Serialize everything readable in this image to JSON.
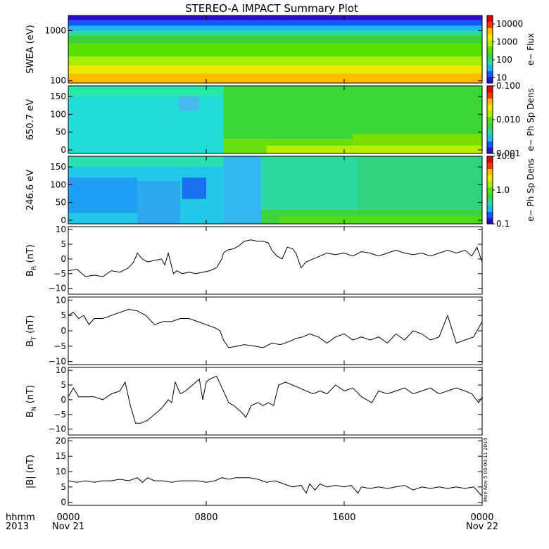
{
  "title": "STEREO-A IMPACT Summary Plot",
  "stamp": "Mon Nov  5 05:00:11 2014",
  "colors": {
    "frame": "#000000",
    "trace": "#000000",
    "background": "#ffffff"
  },
  "x_axis": {
    "caption_row1": "hhmm",
    "caption_row2": "2013",
    "range_hours": [
      0,
      24
    ],
    "ticks": [
      {
        "hour": 0,
        "label": "0000",
        "sublabel": "Nov 21"
      },
      {
        "hour": 8,
        "label": "0800",
        "sublabel": ""
      },
      {
        "hour": 16,
        "label": "1600",
        "sublabel": ""
      },
      {
        "hour": 24,
        "label": "0000",
        "sublabel": "Nov 22"
      }
    ]
  },
  "chart_data": [
    {
      "type": "heatmap",
      "ylabel": "SWEA (eV)",
      "yscale": "log",
      "ylim": [
        90,
        2000
      ],
      "yticks": [
        {
          "v": 100,
          "label": "100"
        },
        {
          "v": 1000,
          "label": "1000"
        }
      ],
      "colorbar_label": "e− Flux",
      "colorbar_scale": "log",
      "colorbar_range": [
        5,
        30000
      ],
      "colorbar_ticks": [
        {
          "v": 10,
          "label": "10"
        },
        {
          "v": 100,
          "label": "100"
        },
        {
          "v": 1000,
          "label": "1000"
        },
        {
          "v": 10000,
          "label": "10000"
        }
      ],
      "color_bands": [
        {
          "y_from": 1600,
          "y_to": 2000,
          "color": "#2c10c8"
        },
        {
          "y_from": 1250,
          "y_to": 1600,
          "color": "#1058ff"
        },
        {
          "y_from": 1000,
          "y_to": 1250,
          "color": "#19b8f0"
        },
        {
          "y_from": 800,
          "y_to": 1000,
          "color": "#2cd8a0"
        },
        {
          "y_from": 550,
          "y_to": 800,
          "color": "#3ed23a"
        },
        {
          "y_from": 300,
          "y_to": 550,
          "color": "#58e000"
        },
        {
          "y_from": 200,
          "y_to": 300,
          "color": "#a8ee00"
        },
        {
          "y_from": 140,
          "y_to": 200,
          "color": "#eee800"
        },
        {
          "y_from": 90,
          "y_to": 140,
          "color": "#ffbb00"
        }
      ]
    },
    {
      "type": "heatmap",
      "ylabel": "650.7 eV",
      "yscale": "linear",
      "ylim": [
        -10,
        180
      ],
      "yticks": [
        {
          "v": 0,
          "label": "0"
        },
        {
          "v": 50,
          "label": "50"
        },
        {
          "v": 100,
          "label": "100"
        },
        {
          "v": 150,
          "label": "150"
        }
      ],
      "colorbar_label": "e− Ph Sp Dens",
      "colorbar_scale": "log",
      "colorbar_range": [
        0.001,
        0.1
      ],
      "colorbar_ticks": [
        {
          "v": 0.001,
          "label": "0.001"
        },
        {
          "v": 0.01,
          "label": "0.010"
        },
        {
          "v": 0.1,
          "label": "0.100"
        }
      ],
      "blocks": [
        {
          "x_from": 0,
          "x_to": 9.0,
          "y_from": -10,
          "y_to": 180,
          "color": "#20ddd8"
        },
        {
          "x_from": 6.4,
          "x_to": 7.6,
          "y_from": 110,
          "y_to": 150,
          "color": "#48b8f0"
        },
        {
          "x_from": 0,
          "x_to": 9.0,
          "y_from": 150,
          "y_to": 180,
          "color": "#28e8a8"
        },
        {
          "x_from": 9.0,
          "x_to": 24,
          "y_from": 30,
          "y_to": 180,
          "color": "#3dd638"
        },
        {
          "x_from": 9.0,
          "x_to": 24,
          "y_from": -10,
          "y_to": 30,
          "color": "#68e010"
        },
        {
          "x_from": 11.5,
          "x_to": 24,
          "y_from": -10,
          "y_to": 12,
          "color": "#b8ee00"
        },
        {
          "x_from": 16.5,
          "x_to": 24,
          "y_from": 12,
          "y_to": 45,
          "color": "#7ae000"
        }
      ]
    },
    {
      "type": "heatmap",
      "ylabel": "246.6 eV",
      "yscale": "linear",
      "ylim": [
        -10,
        180
      ],
      "yticks": [
        {
          "v": 0,
          "label": "0"
        },
        {
          "v": 50,
          "label": "50"
        },
        {
          "v": 100,
          "label": "100"
        },
        {
          "v": 150,
          "label": "150"
        }
      ],
      "colorbar_label": "e− Ph Sp Dens",
      "colorbar_scale": "log",
      "colorbar_range": [
        0.1,
        10
      ],
      "colorbar_ticks": [
        {
          "v": 0.1,
          "label": "0.1"
        },
        {
          "v": 1,
          "label": "1.0"
        },
        {
          "v": 10,
          "label": "10.0"
        }
      ],
      "blocks": [
        {
          "x_from": 0,
          "x_to": 9.0,
          "y_from": -10,
          "y_to": 180,
          "color": "#22c8e8"
        },
        {
          "x_from": 0,
          "x_to": 4.0,
          "y_from": 20,
          "y_to": 120,
          "color": "#1ea0f2"
        },
        {
          "x_from": 4.0,
          "x_to": 6.5,
          "y_from": -10,
          "y_to": 110,
          "color": "#2aa8f0"
        },
        {
          "x_from": 6.6,
          "x_to": 8.0,
          "y_from": 60,
          "y_to": 120,
          "color": "#1870f0"
        },
        {
          "x_from": 0,
          "x_to": 9.0,
          "y_from": 150,
          "y_to": 180,
          "color": "#28e0b0"
        },
        {
          "x_from": 9.0,
          "x_to": 11.2,
          "y_from": -10,
          "y_to": 180,
          "color": "#30b8ee"
        },
        {
          "x_from": 11.2,
          "x_to": 24,
          "y_from": 30,
          "y_to": 180,
          "color": "#2ad8a0"
        },
        {
          "x_from": 16.8,
          "x_to": 24,
          "y_from": 30,
          "y_to": 180,
          "color": "#30d480"
        },
        {
          "x_from": 11.2,
          "x_to": 24,
          "y_from": -10,
          "y_to": 30,
          "color": "#3ed23a"
        },
        {
          "x_from": 12.2,
          "x_to": 24,
          "y_from": -10,
          "y_to": 12,
          "color": "#50dc18"
        }
      ]
    },
    {
      "type": "line",
      "ylabel": "B",
      "ylabel_sub": "R",
      "ylabel_unit": "(nT)",
      "ylim": [
        -12,
        11
      ],
      "yticks": [
        {
          "v": -10,
          "label": "−10"
        },
        {
          "v": -5,
          "label": "−5"
        },
        {
          "v": 0,
          "label": "0"
        },
        {
          "v": 5,
          "label": "5"
        },
        {
          "v": 10,
          "label": "10"
        }
      ],
      "x": [
        0,
        0.5,
        1.0,
        1.5,
        2.0,
        2.5,
        3.0,
        3.5,
        3.8,
        4.0,
        4.3,
        4.6,
        5.0,
        5.4,
        5.6,
        5.8,
        6.1,
        6.3,
        6.6,
        7.0,
        7.4,
        7.8,
        8.2,
        8.6,
        8.9,
        9.0,
        9.2,
        9.6,
        9.9,
        10.2,
        10.6,
        11.0,
        11.3,
        11.6,
        11.8,
        12.1,
        12.4,
        12.7,
        13.0,
        13.2,
        13.5,
        13.8,
        14.2,
        14.6,
        15.0,
        15.5,
        16.0,
        16.5,
        17.0,
        17.5,
        18.0,
        18.5,
        19.0,
        19.5,
        20.0,
        20.5,
        21.0,
        21.5,
        22.0,
        22.5,
        23.0,
        23.4,
        23.7,
        24.0
      ],
      "y": [
        -4,
        -3.5,
        -6,
        -5.5,
        -6,
        -4,
        -4.5,
        -3,
        -1,
        2,
        0,
        -1,
        -0.5,
        0,
        -2,
        2,
        -5,
        -4,
        -5,
        -4.5,
        -5,
        -4.5,
        -4,
        -3,
        0,
        2,
        3,
        3.5,
        4.5,
        6,
        6.5,
        6,
        6,
        5.5,
        3,
        1,
        0,
        4,
        3.5,
        2,
        -3,
        -1,
        0,
        1,
        2,
        1.5,
        2,
        1,
        2.5,
        2,
        1,
        2,
        3,
        2,
        1.5,
        2,
        1,
        2,
        3,
        2,
        3,
        1,
        4,
        -1
      ]
    },
    {
      "type": "line",
      "ylabel": "B",
      "ylabel_sub": "T",
      "ylabel_unit": "(nT)",
      "ylim": [
        -11,
        11
      ],
      "yticks": [
        {
          "v": -10,
          "label": "−10"
        },
        {
          "v": -5,
          "label": "−5"
        },
        {
          "v": 0,
          "label": "0"
        },
        {
          "v": 5,
          "label": "5"
        },
        {
          "v": 10,
          "label": "10"
        }
      ],
      "x": [
        0,
        0.3,
        0.6,
        0.9,
        1.2,
        1.5,
        2.0,
        2.5,
        3.0,
        3.5,
        4.0,
        4.5,
        5.0,
        5.5,
        6.0,
        6.5,
        7.0,
        7.5,
        8.0,
        8.5,
        8.8,
        9.0,
        9.3,
        9.8,
        10.2,
        10.8,
        11.3,
        11.8,
        12.3,
        12.8,
        13.2,
        13.6,
        14.0,
        14.5,
        15.0,
        15.5,
        16.0,
        16.5,
        17.0,
        17.5,
        18.0,
        18.5,
        19.0,
        19.5,
        20.0,
        20.5,
        21.0,
        21.5,
        22.0,
        22.5,
        23.0,
        23.5,
        24.0
      ],
      "y": [
        5,
        6,
        4,
        5,
        2,
        4,
        4,
        5,
        6,
        7,
        6.5,
        5,
        2,
        3,
        3,
        4,
        4,
        3,
        2,
        1,
        0,
        -3,
        -5.5,
        -5,
        -4.5,
        -5,
        -5.5,
        -4,
        -4.5,
        -3.5,
        -2.5,
        -2,
        -1,
        -2,
        -4,
        -2,
        -1,
        -3,
        -2,
        -3,
        -2,
        -4,
        -1,
        -3,
        0,
        -1,
        -3,
        -2,
        5,
        -4,
        -3,
        -2,
        3
      ]
    },
    {
      "type": "line",
      "ylabel": "B",
      "ylabel_sub": "N",
      "ylabel_unit": "(nT)",
      "ylim": [
        -12,
        11
      ],
      "yticks": [
        {
          "v": -10,
          "label": "−10"
        },
        {
          "v": -5,
          "label": "−5"
        },
        {
          "v": 0,
          "label": "0"
        },
        {
          "v": 5,
          "label": "5"
        },
        {
          "v": 10,
          "label": "10"
        }
      ],
      "x": [
        0,
        0.3,
        0.6,
        1.0,
        1.5,
        2.0,
        2.5,
        3.0,
        3.3,
        3.6,
        3.9,
        4.2,
        4.6,
        5.0,
        5.4,
        5.8,
        6.0,
        6.2,
        6.5,
        6.8,
        7.2,
        7.6,
        7.8,
        8.0,
        8.2,
        8.6,
        9.0,
        9.3,
        9.6,
        10.0,
        10.3,
        10.6,
        11.0,
        11.3,
        11.6,
        11.9,
        12.2,
        12.6,
        13.0,
        13.4,
        13.8,
        14.2,
        14.6,
        15.0,
        15.5,
        16.0,
        16.5,
        17.0,
        17.3,
        17.6,
        18.0,
        18.5,
        19.0,
        19.5,
        20.0,
        20.5,
        21.0,
        21.5,
        22.0,
        22.5,
        23.0,
        23.4,
        23.8,
        24.0
      ],
      "y": [
        1,
        4,
        1,
        1,
        1,
        0,
        2,
        3,
        6,
        -2,
        -8,
        -8,
        -7,
        -5,
        -3,
        0,
        -1,
        6,
        2,
        3,
        5,
        7,
        0,
        6,
        7,
        8,
        3,
        -1,
        -2,
        -4,
        -6,
        -2,
        -1,
        -2,
        -1,
        -2,
        5,
        6,
        5,
        4,
        3,
        2,
        3,
        2,
        5,
        3,
        4,
        1,
        0,
        -1,
        3,
        2,
        3,
        4,
        2,
        3,
        4,
        2,
        3,
        4,
        3,
        2,
        -1,
        1
      ]
    },
    {
      "type": "line",
      "ylabel": "|B|",
      "ylabel_unit": "(nT)",
      "ylim": [
        -1,
        21
      ],
      "yticks": [
        {
          "v": 0,
          "label": "0"
        },
        {
          "v": 5,
          "label": "5"
        },
        {
          "v": 10,
          "label": "10"
        },
        {
          "v": 15,
          "label": "15"
        },
        {
          "v": 20,
          "label": "20"
        }
      ],
      "x": [
        0,
        0.5,
        1.0,
        1.5,
        2.0,
        2.5,
        3.0,
        3.5,
        4.0,
        4.3,
        4.6,
        5.0,
        5.5,
        6.0,
        6.5,
        7.0,
        7.5,
        8.0,
        8.5,
        8.9,
        9.3,
        9.7,
        10.0,
        10.5,
        11.0,
        11.5,
        12.0,
        12.5,
        13.0,
        13.5,
        13.8,
        14.0,
        14.3,
        14.6,
        15.0,
        15.5,
        16.0,
        16.4,
        16.8,
        17.0,
        17.5,
        18.0,
        18.5,
        19.0,
        19.5,
        20.0,
        20.5,
        21.0,
        21.5,
        22.0,
        22.5,
        23.0,
        23.5,
        24.0
      ],
      "y": [
        7,
        6.5,
        7,
        6.5,
        7,
        7,
        7.5,
        7,
        8,
        6.5,
        8,
        7,
        7,
        6.5,
        7,
        7,
        7,
        6.5,
        7,
        8,
        7.5,
        8,
        8,
        8,
        7.5,
        6.5,
        7,
        6,
        5,
        5.5,
        3,
        6,
        4,
        6,
        5,
        5.5,
        5,
        5.5,
        3,
        5,
        4.5,
        5,
        4.5,
        5,
        5.5,
        4,
        5,
        4.5,
        5,
        4.5,
        5,
        4.5,
        5,
        2
      ]
    }
  ]
}
